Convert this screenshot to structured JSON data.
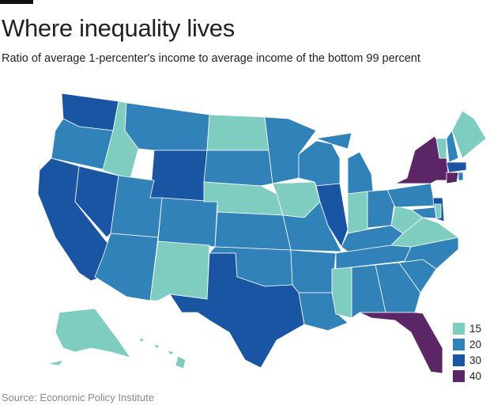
{
  "header": {
    "title": "Where inequality lives",
    "subtitle": "Ratio of average 1-percenter's income to average income of the bottom 99 percent"
  },
  "source": "Source: Economic Policy Institute",
  "legend": {
    "items": [
      {
        "label": "15",
        "color": "#7ecdc0"
      },
      {
        "label": "20",
        "color": "#3182b8"
      },
      {
        "label": "30",
        "color": "#1a55a3"
      },
      {
        "label": "40",
        "color": "#5b2566"
      }
    ]
  },
  "map_data": {
    "type": "choropleth",
    "region": "United States",
    "states": {
      "WA": "30",
      "OR": "20",
      "CA": "30",
      "NV": "30",
      "ID": "15",
      "MT": "20",
      "WY": "30",
      "UT": "20",
      "AZ": "20",
      "CO": "20",
      "NM": "15",
      "ND": "15",
      "SD": "20",
      "NE": "15",
      "KS": "20",
      "OK": "20",
      "TX": "30",
      "MN": "20",
      "IA": "15",
      "MO": "20",
      "AR": "20",
      "LA": "20",
      "WI": "20",
      "IL": "30",
      "MI": "20",
      "IN": "15",
      "OH": "20",
      "KY": "20",
      "TN": "20",
      "MS": "15",
      "AL": "20",
      "GA": "20",
      "FL": "40",
      "SC": "20",
      "NC": "20",
      "VA": "15",
      "WV": "15",
      "PA": "20",
      "NY": "40",
      "VT": "15",
      "NH": "20",
      "ME": "15",
      "MA": "30",
      "CT": "40",
      "RI": "20",
      "NJ": "30",
      "DE": "15",
      "MD": "20",
      "AK": "15",
      "HI": "15"
    }
  }
}
